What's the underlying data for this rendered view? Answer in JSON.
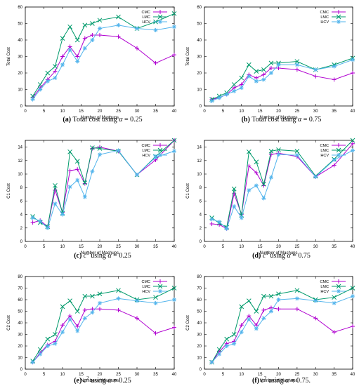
{
  "figure": {
    "panels": [
      {
        "letter": "(a)",
        "caption_text": "Total cost using ",
        "caption_symbol": "α",
        "caption_suffix": " = 0.25"
      },
      {
        "letter": "(b)",
        "caption_text": "Total cost using ",
        "caption_symbol": "α",
        "caption_suffix": " = 0.75"
      },
      {
        "letter": "(c)",
        "caption_text": " using ",
        "caption_base": "c",
        "caption_sup": "1",
        "caption_symbol": "α",
        "caption_suffix": " = 0.25"
      },
      {
        "letter": "(d)",
        "caption_text": " using ",
        "caption_base": "c",
        "caption_sup": "1",
        "caption_symbol": "α",
        "caption_suffix": " = 0.75"
      },
      {
        "letter": "(e)",
        "caption_text": " using ",
        "caption_base": "c",
        "caption_sup": "2",
        "caption_symbol": "α",
        "caption_suffix": " = 0.25"
      },
      {
        "letter": "(f)",
        "caption_text": " using ",
        "caption_base": "c",
        "caption_sup": "2",
        "caption_symbol": "α",
        "caption_suffix": " = 0.75."
      }
    ]
  },
  "colors": {
    "CMC": "#b000d0",
    "LMC": "#009a6b",
    "HCV": "#52b4ec",
    "axis": "#000000"
  },
  "chart_data": [
    {
      "type": "line",
      "xlabel": "Number of Mashups",
      "ylabel": "Total Cost",
      "xlim": [
        0,
        40
      ],
      "ylim": [
        0,
        60
      ],
      "xticks": [
        0,
        5,
        10,
        15,
        20,
        25,
        30,
        35,
        40
      ],
      "yticks": [
        0,
        10,
        20,
        30,
        40,
        50,
        60
      ],
      "legend": "top-right",
      "x": [
        2,
        4,
        6,
        8,
        10,
        12,
        14,
        16,
        18,
        20,
        25,
        30,
        35,
        40
      ],
      "series": [
        {
          "name": "CMC",
          "values": [
            5,
            11,
            16,
            21,
            30,
            36,
            30,
            41,
            43,
            43,
            42,
            35,
            26,
            31
          ]
        },
        {
          "name": "LMC",
          "values": [
            6,
            13,
            20,
            24,
            41,
            48,
            40,
            49,
            50,
            52,
            54,
            47,
            51,
            56
          ]
        },
        {
          "name": "HCV",
          "values": [
            4,
            10,
            15,
            17,
            25,
            34,
            27,
            35,
            40,
            47,
            49,
            47,
            46,
            48
          ]
        }
      ]
    },
    {
      "type": "line",
      "xlabel": "Number of Mashups",
      "ylabel": "Total Cost",
      "xlim": [
        0,
        40
      ],
      "ylim": [
        0,
        60
      ],
      "xticks": [
        0,
        5,
        10,
        15,
        20,
        25,
        30,
        35,
        40
      ],
      "yticks": [
        0,
        10,
        20,
        30,
        40,
        50,
        60
      ],
      "legend": "top-right",
      "x": [
        2,
        4,
        6,
        8,
        10,
        12,
        14,
        16,
        18,
        20,
        25,
        30,
        35,
        40
      ],
      "series": [
        {
          "name": "CMC",
          "values": [
            4,
            5,
            7,
            11,
            13,
            19,
            17,
            19,
            23,
            23,
            22,
            18,
            16,
            20
          ]
        },
        {
          "name": "LMC",
          "values": [
            4,
            6,
            8,
            13,
            17,
            25,
            21,
            22,
            26,
            26,
            27,
            22,
            25,
            29
          ]
        },
        {
          "name": "HCV",
          "values": [
            3,
            5,
            7,
            9,
            11,
            18,
            15,
            16,
            20,
            25,
            25,
            22,
            24,
            28
          ]
        }
      ]
    },
    {
      "type": "line",
      "xlabel": "Number of Mashups",
      "ylabel": "C1 Cost",
      "xlim": [
        0,
        40
      ],
      "ylim": [
        0,
        15
      ],
      "xticks": [
        0,
        5,
        10,
        15,
        20,
        25,
        30,
        35,
        40
      ],
      "yticks": [
        0,
        2,
        4,
        6,
        8,
        10,
        12,
        14
      ],
      "legend": "top-right",
      "x": [
        2,
        4,
        6,
        8,
        10,
        12,
        14,
        16,
        18,
        20,
        25,
        30,
        35,
        40
      ],
      "series": [
        {
          "name": "CMC",
          "values": [
            2.8,
            3.1,
            2.2,
            7.6,
            4.3,
            10.5,
            10.7,
            8.6,
            13.8,
            14.0,
            13.4,
            9.9,
            12.1,
            15.0
          ]
        },
        {
          "name": "LMC",
          "values": [
            3.7,
            2.8,
            2.2,
            8.3,
            4.2,
            13.3,
            11.9,
            8.7,
            13.9,
            13.8,
            13.4,
            9.9,
            12.6,
            15.0
          ]
        },
        {
          "name": "HCV",
          "values": [
            3.5,
            3.0,
            2.0,
            5.6,
            4.0,
            8.1,
            9.1,
            6.6,
            10.4,
            12.9,
            13.5,
            9.9,
            12.5,
            13.4
          ]
        }
      ]
    },
    {
      "type": "line",
      "xlabel": "Number of Mashups",
      "ylabel": "C1 Cost",
      "xlim": [
        0,
        40
      ],
      "ylim": [
        0,
        15
      ],
      "xticks": [
        0,
        5,
        10,
        15,
        20,
        25,
        30,
        35,
        40
      ],
      "yticks": [
        0,
        2,
        4,
        6,
        8,
        10,
        12,
        14
      ],
      "legend": "top-right",
      "x": [
        2,
        4,
        6,
        8,
        10,
        12,
        14,
        16,
        18,
        20,
        25,
        30,
        35,
        40
      ],
      "series": [
        {
          "name": "CMC",
          "values": [
            2.6,
            2.5,
            1.9,
            7.1,
            4.0,
            11.2,
            10.2,
            8.3,
            12.9,
            13.1,
            12.6,
            9.6,
            11.3,
            14.5
          ]
        },
        {
          "name": "LMC",
          "values": [
            3.5,
            2.7,
            2.1,
            7.8,
            3.9,
            13.3,
            11.8,
            8.5,
            13.4,
            13.6,
            13.4,
            9.7,
            12.2,
            15.0
          ]
        },
        {
          "name": "HCV",
          "values": [
            3.3,
            2.9,
            1.9,
            5.2,
            3.5,
            7.6,
            8.3,
            6.4,
            9.5,
            12.9,
            12.8,
            9.6,
            12.1,
            13.5
          ]
        }
      ]
    },
    {
      "type": "line",
      "xlabel": "Number of Mashups",
      "ylabel": "C2 Cost",
      "xlim": [
        0,
        40
      ],
      "ylim": [
        0,
        80
      ],
      "xticks": [
        0,
        5,
        10,
        15,
        20,
        25,
        30,
        35,
        40
      ],
      "yticks": [
        0,
        10,
        20,
        30,
        40,
        50,
        60,
        70,
        80
      ],
      "legend": "top-right",
      "x": [
        2,
        4,
        6,
        8,
        10,
        12,
        14,
        16,
        18,
        20,
        25,
        30,
        35,
        40
      ],
      "series": [
        {
          "name": "CMC",
          "values": [
            6,
            14,
            21,
            24,
            38,
            46,
            37,
            51,
            52,
            52,
            51,
            44,
            31,
            36
          ]
        },
        {
          "name": "LMC",
          "values": [
            7,
            17,
            26,
            30,
            54,
            59,
            50,
            63,
            63,
            65,
            68,
            60,
            62,
            70
          ]
        },
        {
          "name": "HCV",
          "values": [
            6,
            13,
            20,
            22,
            32,
            43,
            33,
            44,
            49,
            57,
            61,
            59,
            57,
            60
          ]
        }
      ]
    },
    {
      "type": "line",
      "xlabel": "Number of Mashups",
      "ylabel": "C2 Cost",
      "xlim": [
        0,
        40
      ],
      "ylim": [
        0,
        80
      ],
      "xticks": [
        0,
        5,
        10,
        15,
        20,
        25,
        30,
        35,
        40
      ],
      "yticks": [
        0,
        10,
        20,
        30,
        40,
        50,
        60,
        70,
        80
      ],
      "legend": "top-right",
      "x": [
        2,
        4,
        6,
        8,
        10,
        12,
        14,
        16,
        18,
        20,
        25,
        30,
        35,
        40
      ],
      "series": [
        {
          "name": "CMC",
          "values": [
            6,
            15,
            22,
            24,
            38,
            46,
            38,
            51,
            53,
            52,
            52,
            44,
            32,
            37
          ]
        },
        {
          "name": "LMC",
          "values": [
            6,
            17,
            26,
            30,
            54,
            59,
            50,
            63,
            63,
            65,
            68,
            60,
            62,
            70
          ]
        },
        {
          "name": "HCV",
          "values": [
            6,
            13,
            20,
            22,
            32,
            43,
            35,
            44,
            50,
            60,
            61,
            59,
            57,
            63
          ]
        }
      ]
    }
  ]
}
